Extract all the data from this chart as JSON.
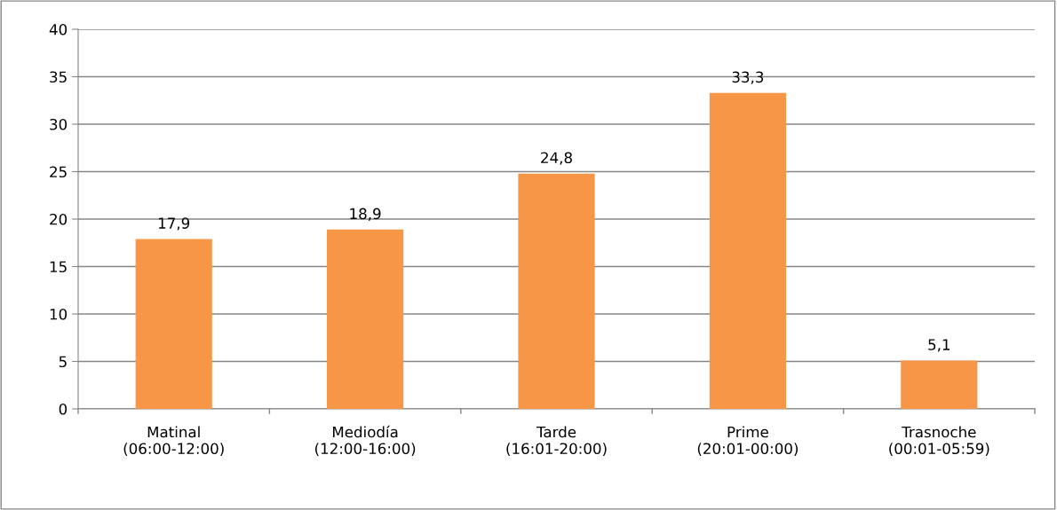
{
  "chart_data": {
    "type": "bar",
    "categories": [
      "Matinal\n(06:00-12:00)",
      "Mediodía\n(12:00-16:00)",
      "Tarde\n(16:01-20:00)",
      "Prime\n(20:01-00:00)",
      "Trasnoche\n(00:01-05:59)"
    ],
    "values": [
      17.9,
      18.9,
      24.8,
      33.3,
      5.1
    ],
    "value_labels": [
      "17,9",
      "18,9",
      "24,8",
      "33,3",
      "5,1"
    ],
    "color": "#f79646",
    "ylim": [
      0,
      40
    ],
    "yticks": [
      0,
      5,
      10,
      15,
      20,
      25,
      30,
      35,
      40
    ],
    "grid": "y",
    "legend": false
  }
}
